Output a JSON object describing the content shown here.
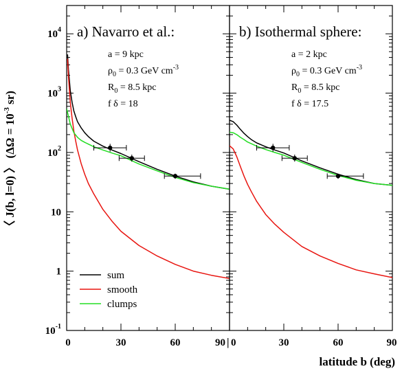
{
  "figure": {
    "ylabel_parts": {
      "a": "〈 J(b, l=0) 〉 (ΔΩ = 10",
      "sup": "-3",
      "b": " sr)"
    },
    "xlabel": "latitude b (deg)",
    "yticks": [
      {
        "base": "10",
        "exp": "-1",
        "value": 0.1
      },
      {
        "base": "1",
        "exp": "",
        "value": 1
      },
      {
        "base": "10",
        "exp": "",
        "value": 10
      },
      {
        "base": "10",
        "exp": "2",
        "value": 100
      },
      {
        "base": "10",
        "exp": "3",
        "value": 1000
      },
      {
        "base": "10",
        "exp": "4",
        "value": 10000
      }
    ],
    "xticks_left": [
      "0",
      "30",
      "60",
      "90"
    ],
    "xticks_right": [
      "0",
      "30",
      "60",
      "90"
    ],
    "divider_glyph": "|",
    "colors": {
      "sum": "#000000",
      "smooth": "#e8140f",
      "clumps": "#22dd22"
    }
  },
  "panels": [
    {
      "title": "a) Navarro et al.:",
      "params": [
        {
          "a": "a = 9 kpc"
        },
        {
          "a": "ρ",
          "sub": "0",
          "b": " = 0.3 GeV cm",
          "sup": "-3"
        },
        {
          "a": "R",
          "sub": "0",
          "b": " = 8.5 kpc"
        },
        {
          "a": "f δ = 18"
        }
      ]
    },
    {
      "title": "b) Isothermal sphere:",
      "params": [
        {
          "a": "a = 2 kpc"
        },
        {
          "a": "ρ",
          "sub": "0",
          "b": " = 0.3 GeV cm",
          "sup": "-3"
        },
        {
          "a": "R",
          "sub": "0",
          "b": " = 8.5 kpc"
        },
        {
          "a": "f δ = 17.5"
        }
      ]
    }
  ],
  "legend": [
    {
      "label": "sum",
      "color": "#000000"
    },
    {
      "label": "smooth",
      "color": "#e8140f"
    },
    {
      "label": "clumps",
      "color": "#22dd22"
    }
  ],
  "chart_data": [
    {
      "type": "line",
      "title": "a) Navarro et al.:",
      "xlabel": "latitude b (deg)",
      "ylabel": "〈 J(b, l=0) 〉 (ΔΩ = 10^-3 sr)",
      "yscale": "log",
      "xlim": [
        0,
        90
      ],
      "ylim": [
        0.1,
        30000
      ],
      "legend_position": "bottom-left",
      "series": [
        {
          "name": "sum",
          "color": "#000000",
          "x": [
            0.5,
            1,
            2,
            3,
            4,
            5,
            6,
            8,
            10,
            12,
            15,
            20,
            25,
            30,
            40,
            50,
            60,
            70,
            80,
            90
          ],
          "y": [
            4500,
            2500,
            1100,
            700,
            500,
            400,
            330,
            260,
            215,
            185,
            155,
            128,
            110,
            96,
            70,
            52,
            40,
            32,
            27,
            24
          ]
        },
        {
          "name": "smooth",
          "color": "#e8140f",
          "x": [
            0.5,
            1,
            2,
            3,
            4,
            5,
            6,
            8,
            10,
            12,
            15,
            20,
            25,
            30,
            40,
            50,
            60,
            70,
            80,
            90
          ],
          "y": [
            3800,
            1900,
            700,
            380,
            230,
            155,
            110,
            65,
            43,
            30,
            20,
            11,
            7,
            4.7,
            2.7,
            1.8,
            1.3,
            1.0,
            0.85,
            0.75
          ]
        },
        {
          "name": "clumps",
          "color": "#22dd22",
          "x": [
            0,
            2,
            4,
            6,
            8,
            10,
            15,
            20,
            25,
            30,
            40,
            50,
            60,
            70,
            80,
            90
          ],
          "y": [
            550,
            300,
            215,
            180,
            160,
            148,
            125,
            110,
            98,
            88,
            64,
            49,
            38,
            31,
            27,
            24
          ]
        }
      ],
      "points": [
        {
          "x": 24,
          "y": 120,
          "xerr": [
            15,
            33
          ],
          "yerr": [
            103,
            140
          ]
        },
        {
          "x": 36,
          "y": 80,
          "xerr": [
            29,
            43
          ],
          "yerr": [
            70,
            92
          ]
        },
        {
          "x": 60,
          "y": 40,
          "xerr": [
            54,
            74
          ],
          "yerr": [
            36,
            44
          ]
        }
      ]
    },
    {
      "type": "line",
      "title": "b) Isothermal sphere:",
      "xlabel": "latitude b (deg)",
      "ylabel": "〈 J(b, l=0) 〉 (ΔΩ = 10^-3 sr)",
      "yscale": "log",
      "xlim": [
        0,
        90
      ],
      "ylim": [
        0.1,
        30000
      ],
      "series": [
        {
          "name": "sum",
          "color": "#000000",
          "x": [
            0,
            2,
            4,
            6,
            8,
            10,
            12,
            15,
            20,
            25,
            30,
            40,
            50,
            60,
            70,
            80,
            90
          ],
          "y": [
            350,
            330,
            290,
            245,
            210,
            185,
            165,
            145,
            125,
            110,
            98,
            72,
            55,
            43,
            35,
            30,
            28
          ]
        },
        {
          "name": "smooth",
          "color": "#e8140f",
          "x": [
            0,
            2,
            4,
            6,
            8,
            10,
            12,
            15,
            20,
            25,
            30,
            40,
            50,
            60,
            70,
            80,
            90
          ],
          "y": [
            130,
            115,
            85,
            58,
            40,
            29,
            22,
            15,
            9,
            6.2,
            4.5,
            2.6,
            1.8,
            1.35,
            1.05,
            0.9,
            0.78
          ]
        },
        {
          "name": "clumps",
          "color": "#22dd22",
          "x": [
            0,
            2,
            4,
            6,
            8,
            10,
            15,
            20,
            25,
            30,
            40,
            50,
            60,
            70,
            80,
            90
          ],
          "y": [
            220,
            215,
            200,
            180,
            165,
            150,
            128,
            112,
            100,
            90,
            68,
            52,
            41,
            34,
            30,
            28
          ]
        }
      ],
      "points": [
        {
          "x": 24,
          "y": 120,
          "xerr": [
            15,
            33
          ],
          "yerr": [
            103,
            140
          ]
        },
        {
          "x": 36,
          "y": 80,
          "xerr": [
            29,
            43
          ],
          "yerr": [
            70,
            92
          ]
        },
        {
          "x": 60,
          "y": 40,
          "xerr": [
            54,
            74
          ],
          "yerr": [
            36,
            44
          ]
        }
      ]
    }
  ]
}
